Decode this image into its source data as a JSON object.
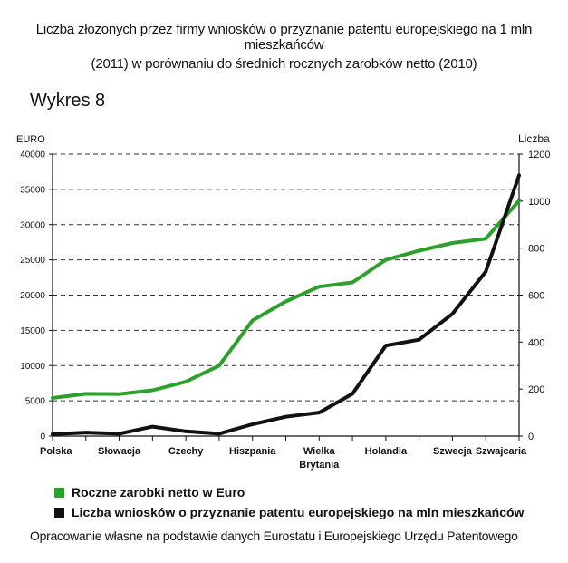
{
  "header": {
    "title_line1": "Liczba złożonych przez firmy wniosków o przyznanie patentu europejskiego  na 1 mln mieszkańców",
    "title_line2": "(2011) w porównaniu do średnich rocznych zarobków netto (2010)",
    "subtitle": "Wykres 8"
  },
  "footer": {
    "source": "Opracowanie własne na podstawie danych Eurostatu i Europejskiego Urzędu Patentowego"
  },
  "colors": {
    "green": "#2ca02c",
    "black": "#111111",
    "grid": "#333333"
  },
  "chart_data": {
    "type": "line",
    "left_axis_title": "EURO",
    "right_axis_title": "Liczba",
    "ylim_left": [
      0,
      40000
    ],
    "ylim_right": [
      0,
      1200
    ],
    "left_ticks": [
      0,
      5000,
      10000,
      15000,
      20000,
      25000,
      30000,
      35000,
      40000
    ],
    "right_ticks": [
      0,
      200,
      400,
      600,
      800,
      1000,
      1200
    ],
    "grid": "dashed horizontal",
    "x_points": 15,
    "x_tick_labels": [
      {
        "label": "Polska",
        "index": 0
      },
      {
        "label": "Słowacja",
        "index": 2
      },
      {
        "label": "Czechy",
        "index": 4
      },
      {
        "label": "Hiszpania",
        "index": 6
      },
      {
        "label": "Wielka Brytania",
        "line1": "Wielka",
        "line2": "Brytania",
        "index": 8
      },
      {
        "label": "Holandia",
        "index": 10
      },
      {
        "label": "Szwecja",
        "index": 12
      },
      {
        "label": "Szwajcaria",
        "index": 14
      }
    ],
    "series": [
      {
        "name": "Roczne zarobki netto w Euro",
        "axis": "left",
        "color": "#2ca02c",
        "values": [
          5400,
          6000,
          5950,
          6500,
          7700,
          10000,
          16400,
          19100,
          21200,
          21800,
          25000,
          26300,
          27400,
          28000,
          33400
        ]
      },
      {
        "name": "Liczba wniosków o przyznanie patentu europejskiego na mln mieszkańców",
        "axis": "right",
        "color": "#111111",
        "values": [
          8,
          15,
          10,
          40,
          20,
          10,
          50,
          82,
          100,
          180,
          385,
          410,
          520,
          700,
          1110
        ]
      }
    ]
  }
}
